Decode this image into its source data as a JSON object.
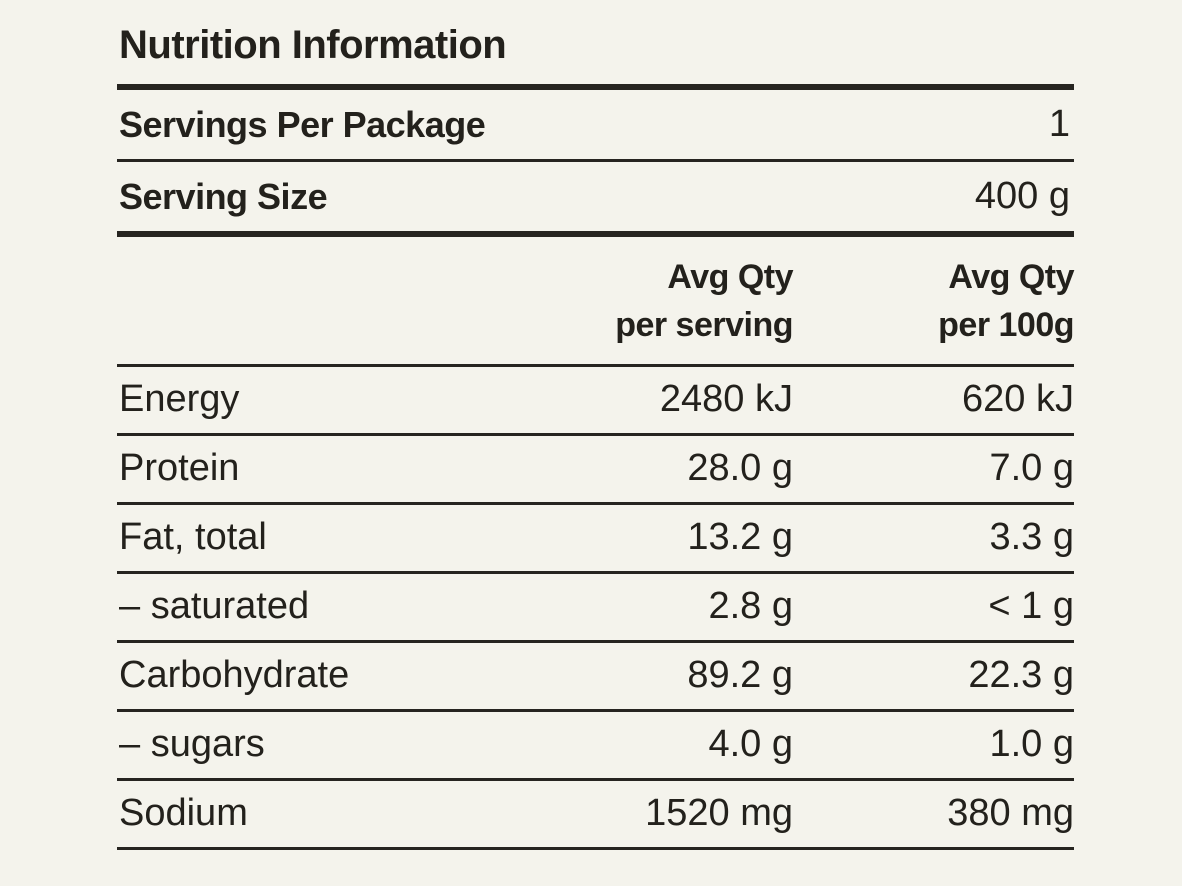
{
  "title": "Nutrition Information",
  "meta_rows": [
    {
      "label": "Servings Per Package",
      "value": "1"
    },
    {
      "label": "Serving Size",
      "value": "400 g"
    }
  ],
  "table": {
    "col_headers": [
      {
        "line1": "Avg Qty",
        "line2": "per serving"
      },
      {
        "line1": "Avg Qty",
        "line2": "per 100g"
      }
    ],
    "rows": [
      {
        "label": "Energy",
        "per_serving": "2480 kJ",
        "per_100g": "620 kJ"
      },
      {
        "label": "Protein",
        "per_serving": "28.0 g",
        "per_100g": "7.0 g"
      },
      {
        "label": "Fat, total",
        "per_serving": "13.2 g",
        "per_100g": "3.3 g"
      },
      {
        "label": "– saturated",
        "per_serving": "2.8 g",
        "per_100g": "< 1 g"
      },
      {
        "label": "Carbohydrate",
        "per_serving": "89.2 g",
        "per_100g": "22.3 g"
      },
      {
        "label": "– sugars",
        "per_serving": "4.0 g",
        "per_100g": "1.0 g"
      },
      {
        "label": "Sodium",
        "per_serving": "1520 mg",
        "per_100g": "380 mg"
      }
    ]
  },
  "colors": {
    "background": "#f4f3ec",
    "text": "#23211c",
    "rule": "#262420"
  }
}
